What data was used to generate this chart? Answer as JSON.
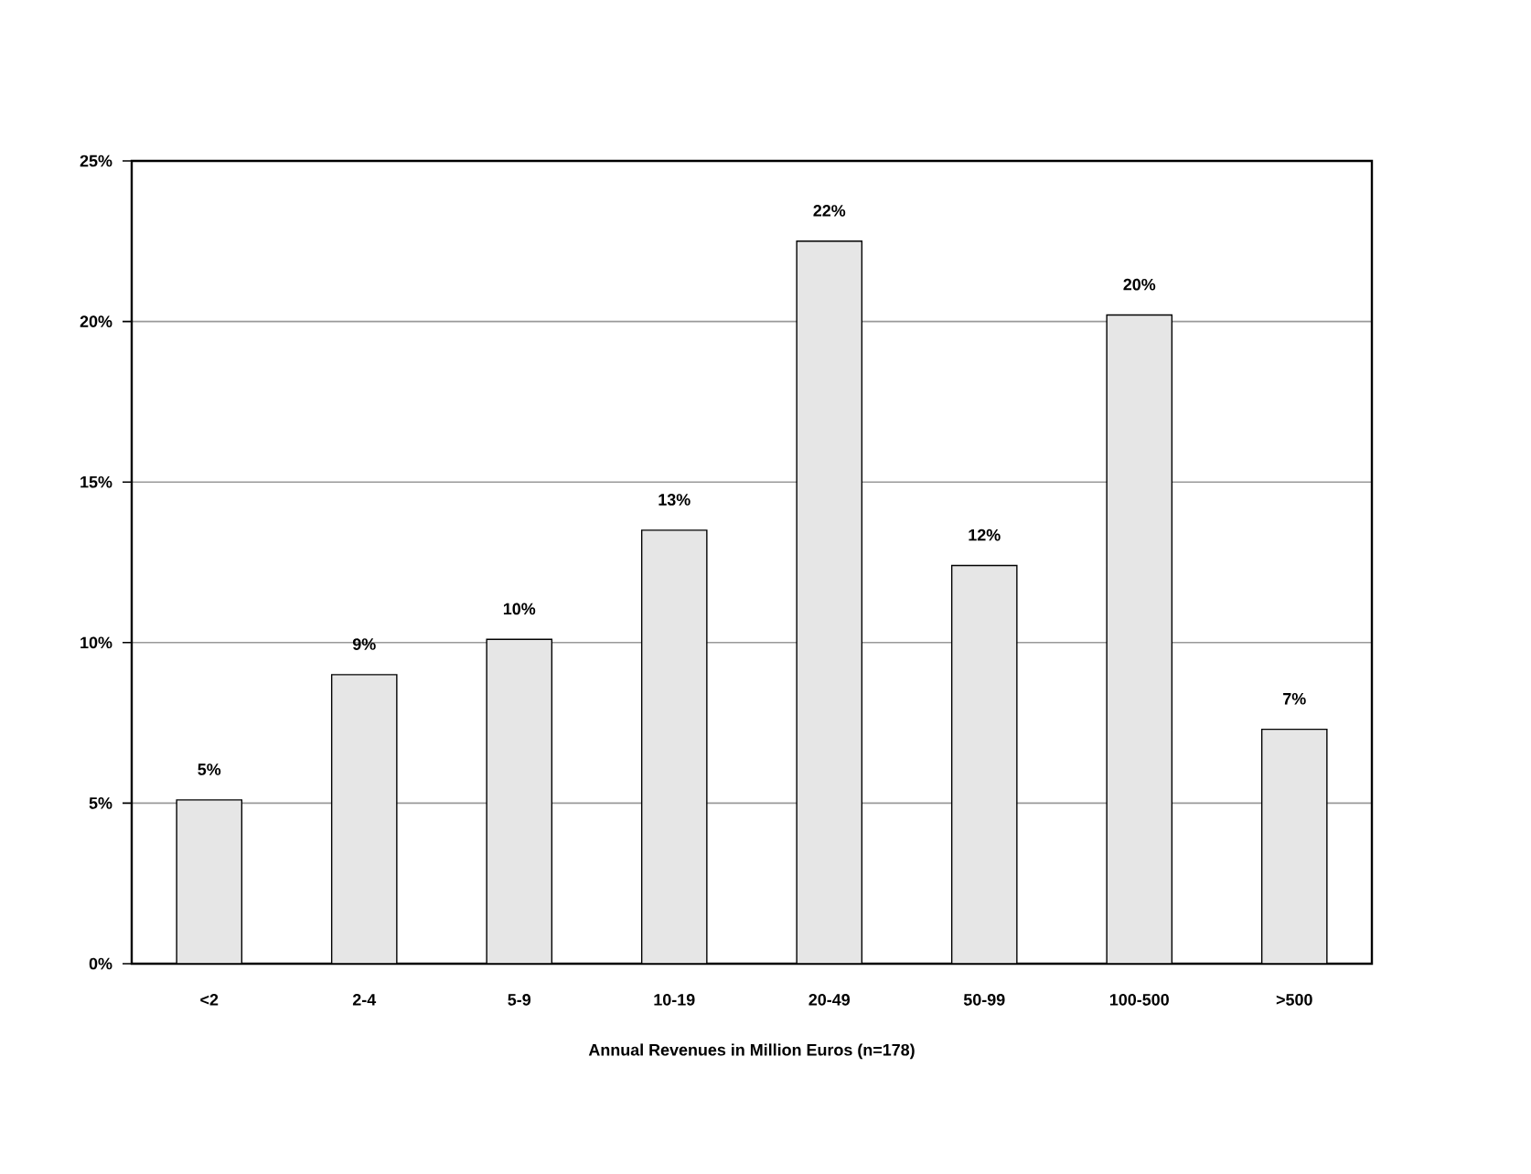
{
  "chart_data": {
    "type": "bar",
    "xlabel": "Annual Revenues in Million Euros (n=178)",
    "categories": [
      "<2",
      "2-4",
      "5-9",
      "10-19",
      "20-49",
      "50-99",
      "100-500",
      ">500"
    ],
    "values": [
      5.1,
      9.0,
      10.1,
      13.5,
      22.5,
      12.4,
      20.2,
      7.3
    ],
    "value_labels": [
      "5%",
      "9%",
      "10%",
      "13%",
      "22%",
      "12%",
      "20%",
      "7%"
    ],
    "color": "#e6e6e6",
    "ylim": [
      0,
      25
    ],
    "yticks": [
      {
        "value": 0,
        "label": "0%"
      },
      {
        "value": 5,
        "label": "5%"
      },
      {
        "value": 10,
        "label": "10%"
      },
      {
        "value": 15,
        "label": "15%"
      },
      {
        "value": 20,
        "label": "20%"
      },
      {
        "value": 25,
        "label": "25%"
      }
    ],
    "grid": "y"
  }
}
